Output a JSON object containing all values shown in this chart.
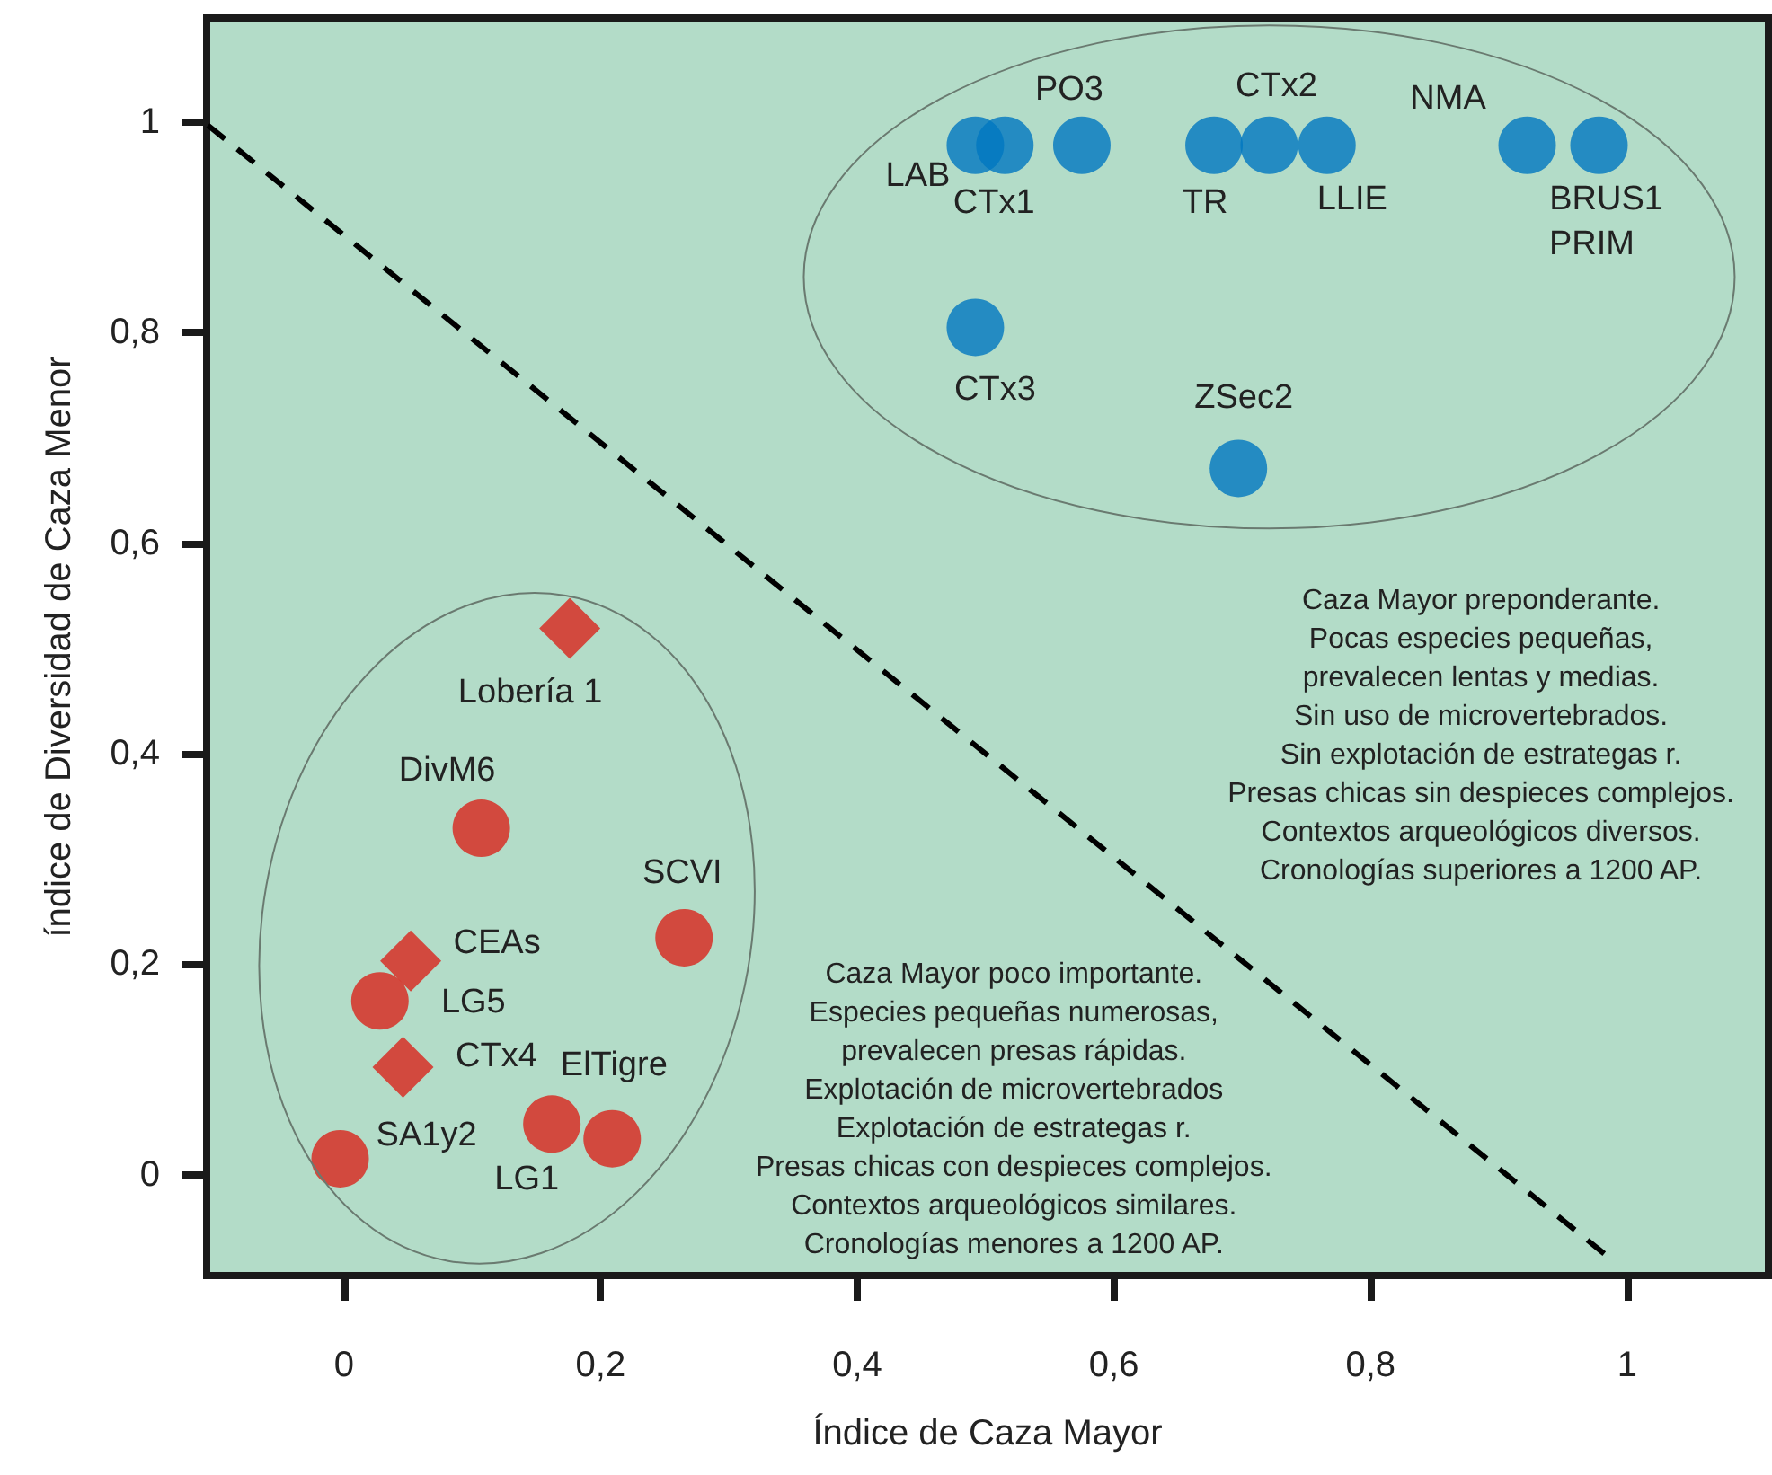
{
  "chart_data": {
    "type": "scatter",
    "xlabel": "Índice de Caza Mayor",
    "ylabel": "índice de Diversidad de Caza Menor",
    "xlim": [
      -0.107,
      1.11
    ],
    "ylim": [
      -0.096,
      1.099
    ],
    "xticks": [
      0,
      {
        "value": 0.2,
        "label": "0,2"
      },
      {
        "value": 0.4,
        "label": "0,4"
      },
      {
        "value": 0.6,
        "label": "0,6"
      },
      {
        "value": 0.8,
        "label": "0,8"
      },
      1
    ],
    "yticks": [
      0,
      {
        "value": 0.2,
        "label": "0,2"
      },
      {
        "value": 0.4,
        "label": "0,4"
      },
      {
        "value": 0.6,
        "label": "0,6"
      },
      {
        "value": 0.8,
        "label": "0,8"
      },
      1
    ],
    "grid": false,
    "series": [
      {
        "color": "#0077c0",
        "marker": "circle",
        "x": [
          0.492,
          0.515,
          0.575,
          0.678,
          0.721,
          0.766,
          0.922,
          0.978,
          0.492,
          0.697
        ],
        "values": [
          0.978,
          0.978,
          0.978,
          0.978,
          0.978,
          0.978,
          0.978,
          0.978,
          0.805,
          0.671
        ]
      },
      {
        "color": "#d9241c",
        "marker": "circle",
        "x": [
          0.107,
          0.265,
          0.028,
          -0.003,
          0.162,
          0.209
        ],
        "values": [
          0.329,
          0.225,
          0.165,
          0.015,
          0.048,
          0.034
        ]
      },
      {
        "color": "#d9241c",
        "marker": "diamond",
        "x": [
          0.176,
          0.052,
          0.046
        ],
        "values": [
          0.519,
          0.203,
          0.102
        ]
      },
      {
        "type": "line",
        "color": "#000000",
        "marker": "none",
        "line_style": "dashed",
        "x": [
          -0.106,
          0.989
        ],
        "values": [
          0.997,
          -0.082
        ]
      }
    ],
    "annotations": [
      {
        "text": "LAB",
        "x": 0.492,
        "y": 0.978
      },
      {
        "text": "CTx1",
        "x": 0.515,
        "y": 0.978
      },
      {
        "text": "PO3",
        "x": 0.575,
        "y": 0.978
      },
      {
        "text": "TR",
        "x": 0.678,
        "y": 0.978
      },
      {
        "text": "CTx2",
        "x": 0.721,
        "y": 0.978
      },
      {
        "text": "LLIE",
        "x": 0.766,
        "y": 0.978
      },
      {
        "text": "NMA",
        "x": 0.922,
        "y": 0.978
      },
      {
        "text": "BRUS1",
        "x": 0.978,
        "y": 0.978
      },
      {
        "text": "PRIM",
        "x": 0.978,
        "y": 0.978
      },
      {
        "text": "CTx3",
        "x": 0.492,
        "y": 0.805
      },
      {
        "text": "ZSec2",
        "x": 0.697,
        "y": 0.671
      },
      {
        "text": "DivM6",
        "x": 0.107,
        "y": 0.329
      },
      {
        "text": "SCVI",
        "x": 0.265,
        "y": 0.225
      },
      {
        "text": "LG5",
        "x": 0.028,
        "y": 0.165
      },
      {
        "text": "SA1y2",
        "x": -0.003,
        "y": 0.015
      },
      {
        "text": "LG1",
        "x": 0.162,
        "y": 0.048
      },
      {
        "text": "ElTigre",
        "x": 0.209,
        "y": 0.034
      },
      {
        "text": "Lobería 1",
        "x": 0.176,
        "y": 0.519
      },
      {
        "text": "CEAs",
        "x": 0.052,
        "y": 0.203
      },
      {
        "text": "CTx4",
        "x": 0.046,
        "y": 0.102
      },
      "Caza Mayor preponderante.\nPocas especies pequeñas,\nprevalecen lentas y medias.\nSin uso de microvertebrados.\nSin explotación de estrategas r.\nPresas chicas sin despieces complejos.\nContextos arqueológicos diversos.\nCronologías superiores a 1200 AP.",
      "Caza Mayor poco importante.\nEspecies pequeñas numerosas,\nprevalecen presas rápidas.\nExplotación de microvertebrados\nExplotación de estrategas r.\nPresas chicas con despieces complejos.\nContextos arqueológicos similares.\nCronologías menores a 1200 AP."
    ]
  }
}
